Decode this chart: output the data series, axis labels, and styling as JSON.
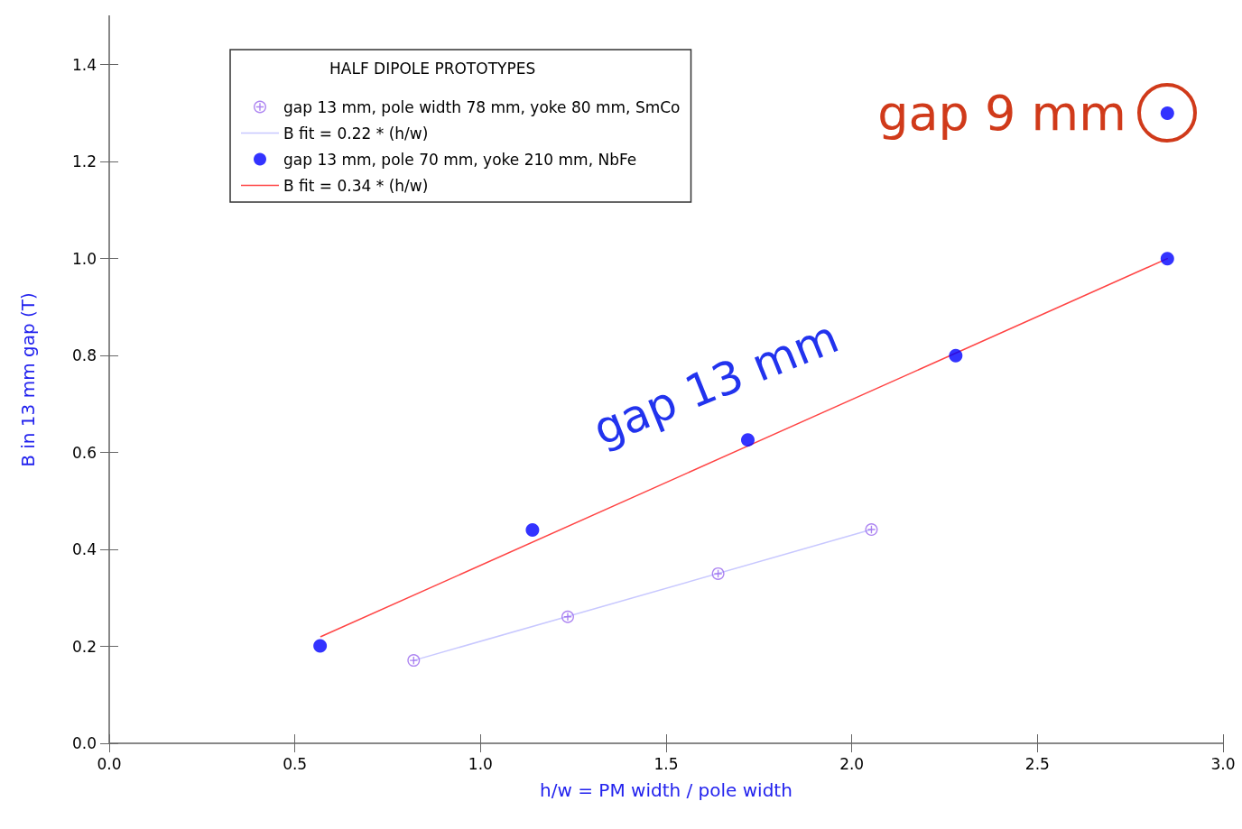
{
  "chart_data": {
    "type": "scatter",
    "xlabel": "h/w = PM width / pole width",
    "ylabel": "B in 13 mm gap (T)",
    "legend_title": "HALF DIPOLE PROTOTYPES",
    "legend": "top left",
    "grid": false,
    "xlim": [
      0,
      3
    ],
    "xticks": [
      {
        "value": 0,
        "label": "0.0"
      },
      0.5,
      {
        "value": 1,
        "label": "1.0"
      },
      1.5,
      {
        "value": 2,
        "label": "2.0"
      },
      2.5,
      {
        "value": 3,
        "label": "3.0"
      }
    ],
    "ylim": [
      0,
      1.5
    ],
    "yticks": [
      {
        "value": 0,
        "label": "0.0"
      },
      0.2,
      0.4,
      0.6,
      0.8,
      {
        "value": 1,
        "label": "1.0"
      },
      1.2,
      1.4
    ],
    "series": [
      {
        "name": "gap 13 mm, pole width 78 mm, yoke 80 mm, SmCo",
        "marker": "cross",
        "color": "#9966ee",
        "x": [
          0.82,
          1.235,
          1.64,
          2.053
        ],
        "values": [
          0.171,
          0.261,
          0.35,
          0.441
        ]
      },
      {
        "name": "B fit = 0.22 * (h/w)",
        "type": "line",
        "marker": "none",
        "color": "#c8c8ff",
        "x": [
          0.82,
          2.053
        ],
        "values": [
          0.171,
          0.441
        ]
      },
      {
        "name": "gap 13 mm, pole 70 mm, yoke 210 mm, NbFe",
        "marker": "circle",
        "color": "#0000ff",
        "x": [
          0.568,
          1.14,
          1.72,
          2.28,
          2.85,
          2.85
        ],
        "values": [
          0.201,
          0.44,
          0.626,
          0.8,
          1.0,
          1.3
        ]
      },
      {
        "name": "B fit = 0.34 * (h/w)",
        "type": "line",
        "marker": "none",
        "color": "#ff4444",
        "x": [
          0.57,
          2.85
        ],
        "values": [
          0.22,
          1.0
        ]
      }
    ],
    "annotations": [
      "gap 13 mm",
      "gap 9 mm"
    ]
  }
}
